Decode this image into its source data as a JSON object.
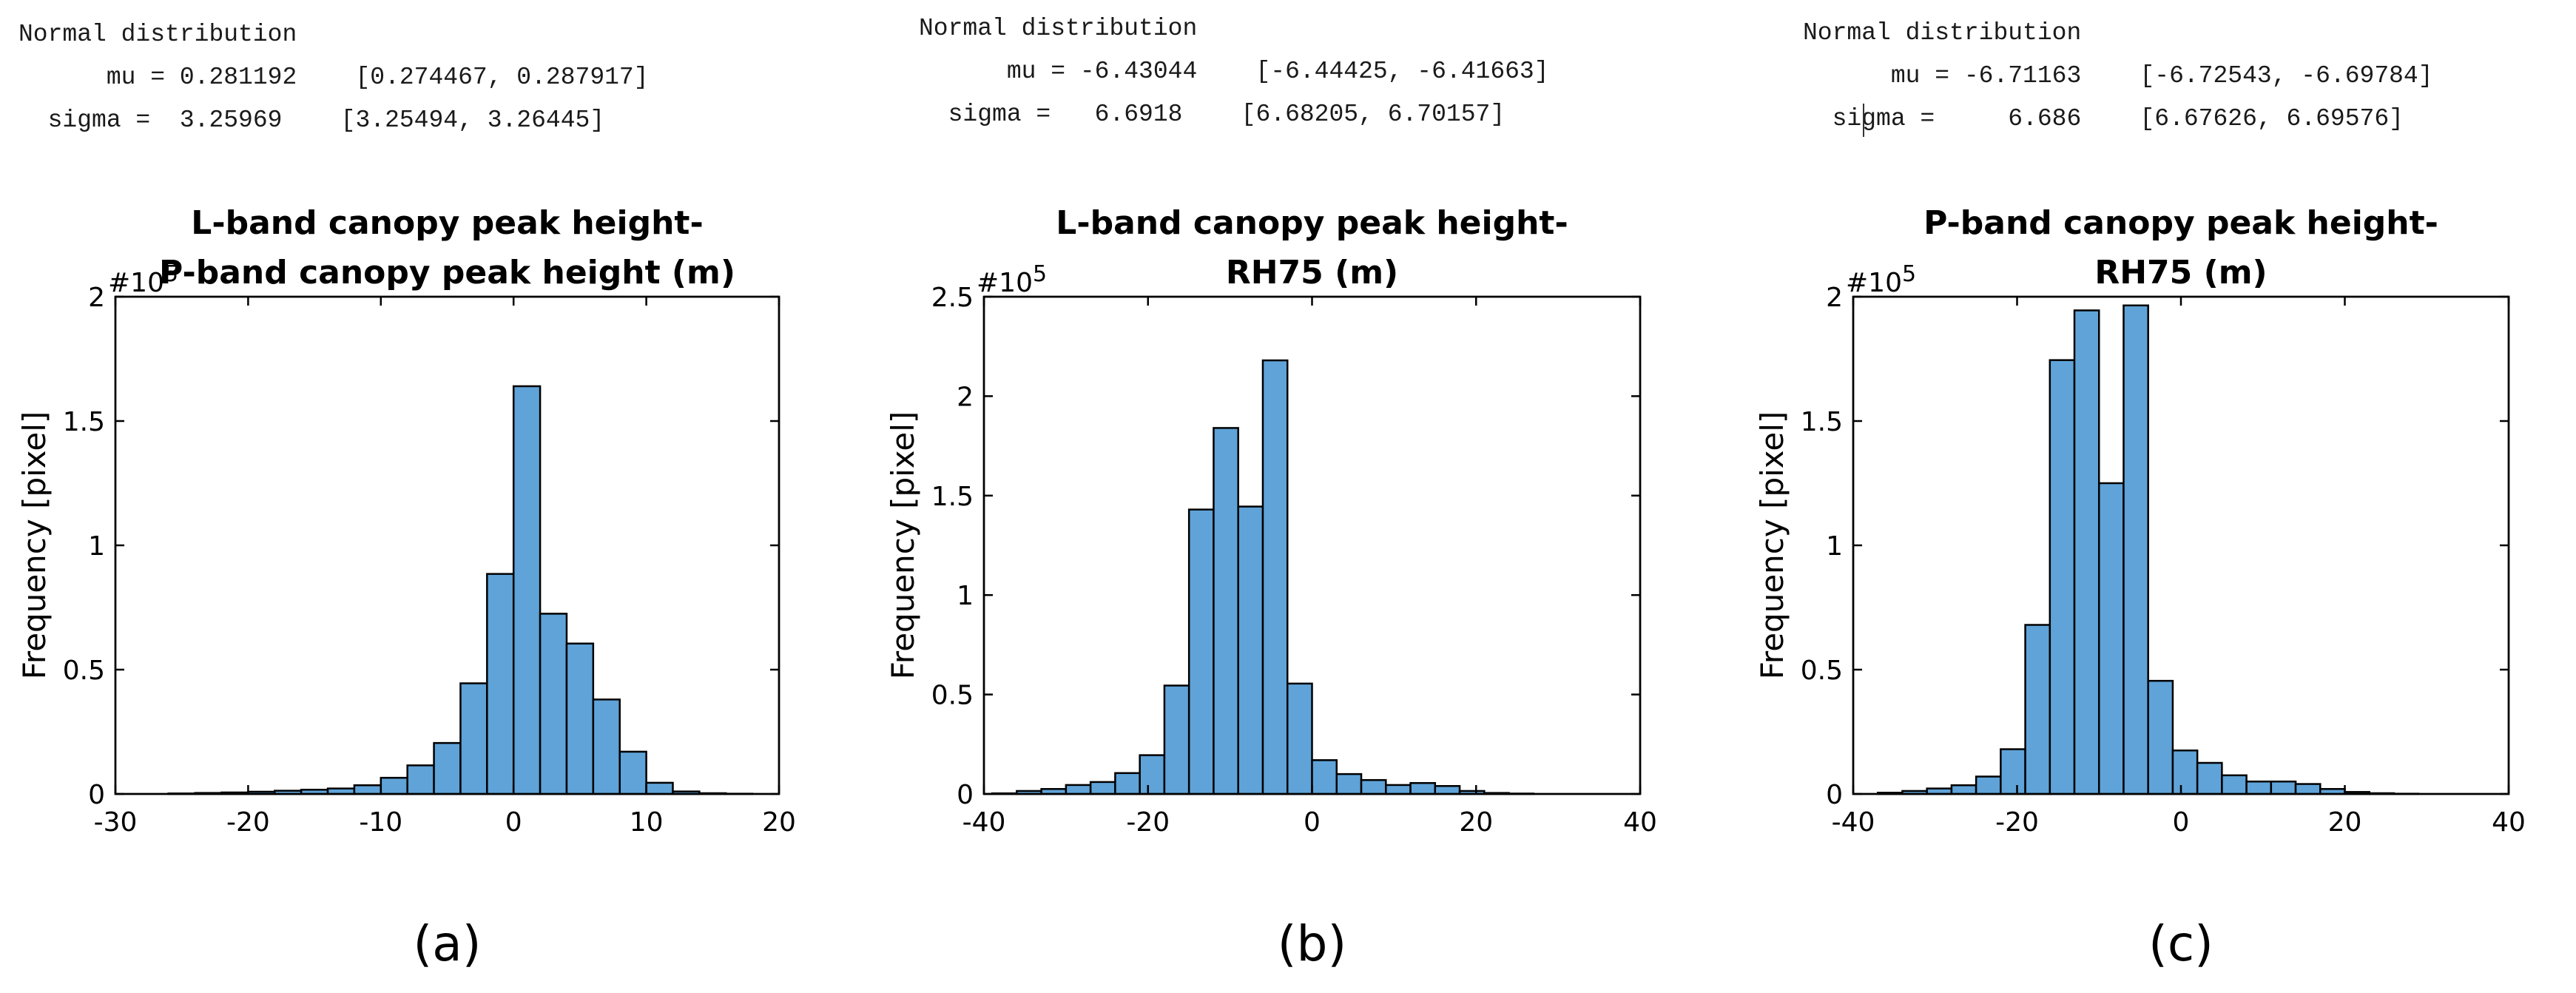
{
  "chart_data": [
    {
      "type": "histogram",
      "panel_label": "(a)",
      "title_lines": [
        "L-band canopy peak height-",
        "P-band canopy peak height (m)"
      ],
      "ylabel": "Frequency [pixel]",
      "y_exponent_text": "#10",
      "y_exponent_power": "5",
      "xlim": [
        -30,
        20
      ],
      "ylim": [
        0,
        2
      ],
      "xticks": [
        -30,
        -20,
        -10,
        0,
        10,
        20
      ],
      "yticks": [
        0,
        0.5,
        1,
        1.5,
        2
      ],
      "bin_edges": [
        -26,
        -24,
        -22,
        -20,
        -18,
        -16,
        -14,
        -12,
        -10,
        -8,
        -6,
        -4,
        -2,
        0,
        2,
        4,
        6,
        8,
        10,
        12,
        14,
        16,
        18
      ],
      "values": [
        0.002,
        0.004,
        0.006,
        0.009,
        0.013,
        0.017,
        0.022,
        0.035,
        0.065,
        0.115,
        0.205,
        0.445,
        0.885,
        1.64,
        0.725,
        0.605,
        0.38,
        0.17,
        0.045,
        0.01,
        0.003,
        0.001
      ],
      "fit": {
        "header": "Normal distribution",
        "rows": [
          {
            "name": "mu",
            "sep": " = ",
            "estimate": "0.281192",
            "ci": "[0.274467, 0.287917]"
          },
          {
            "name": "sigma",
            "sep": " =  ",
            "estimate": "3.25969",
            "ci": "[3.25494, 3.26445]"
          }
        ]
      }
    },
    {
      "type": "histogram",
      "panel_label": "(b)",
      "title_lines": [
        "L-band canopy peak height-",
        "RH75 (m)"
      ],
      "ylabel": "Frequency [pixel]",
      "y_exponent_text": "#10",
      "y_exponent_power": "5",
      "xlim": [
        -40,
        40
      ],
      "ylim": [
        0,
        2.5
      ],
      "xticks": [
        -40,
        -20,
        0,
        20,
        40
      ],
      "yticks": [
        0,
        0.5,
        1,
        1.5,
        2,
        2.5
      ],
      "bin_edges": [
        -39,
        -36,
        -33,
        -30,
        -27,
        -24,
        -21,
        -18,
        -15,
        -12,
        -9,
        -6,
        -3,
        0,
        3,
        6,
        9,
        12,
        15,
        18,
        21,
        24,
        27
      ],
      "values": [
        0.003,
        0.015,
        0.025,
        0.045,
        0.06,
        0.105,
        0.195,
        0.545,
        1.43,
        1.84,
        1.445,
        2.18,
        0.555,
        0.17,
        0.1,
        0.07,
        0.045,
        0.055,
        0.04,
        0.015,
        0.005,
        0.002
      ],
      "fit": {
        "header": "Normal distribution",
        "rows": [
          {
            "name": "mu",
            "sep": " = ",
            "estimate": "-6.43044",
            "ci": "[-6.44425, -6.41663]"
          },
          {
            "name": "sigma",
            "sep": " =   ",
            "estimate": "6.6918",
            "ci": "[6.68205, 6.70157]"
          }
        ]
      }
    },
    {
      "type": "histogram",
      "panel_label": "(c)",
      "title_lines": [
        "P-band canopy peak height-",
        "RH75 (m)"
      ],
      "ylabel": "Frequency [pixel]",
      "y_exponent_text": "#10",
      "y_exponent_power": "5",
      "xlim": [
        -40,
        40
      ],
      "ylim": [
        0,
        2
      ],
      "xticks": [
        -40,
        -20,
        0,
        20,
        40
      ],
      "yticks": [
        0,
        0.5,
        1,
        1.5,
        2
      ],
      "bin_edges": [
        -37,
        -34,
        -31,
        -28,
        -25,
        -22,
        -19,
        -16,
        -13,
        -10,
        -7,
        -4,
        -1,
        2,
        5,
        8,
        11,
        14,
        17,
        20,
        23,
        26,
        29
      ],
      "values": [
        0.005,
        0.012,
        0.022,
        0.035,
        0.07,
        0.18,
        0.68,
        1.745,
        1.945,
        1.25,
        1.965,
        0.455,
        0.175,
        0.125,
        0.075,
        0.05,
        0.05,
        0.04,
        0.02,
        0.008,
        0.003,
        0.001
      ],
      "fit": {
        "header": "Normal distribution",
        "rows": [
          {
            "name": "mu",
            "sep": " = ",
            "estimate": "-6.71163",
            "ci": "[-6.72543, -6.69784]"
          },
          {
            "name": "sigma",
            "sep": " =     ",
            "estimate": "6.686",
            "ci": "[6.67626, 6.69576]"
          }
        ]
      }
    }
  ]
}
